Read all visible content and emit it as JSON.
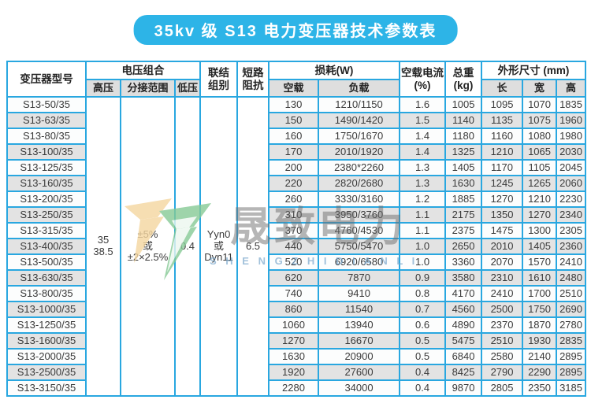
{
  "title": "35kv 级 S13 电力变压器技术参数表",
  "colors": {
    "title_bg": "#2db4e7",
    "grid": "#29a7e0",
    "sub_header_bg": "#dedede",
    "row_alt_bg": "#e3e3e3",
    "logo_green": "#86ca96",
    "logo_orange": "#f4d6a0"
  },
  "table": {
    "headers": {
      "model": "变压器型号",
      "voltage_group": "电压组合",
      "hv": "高压",
      "tap": "分接范围",
      "lv": "低压",
      "connection": "联结\n组别",
      "impedance": "短路\n阻抗",
      "loss_group": "损耗(W)",
      "no_load": "空载",
      "load": "负载",
      "current": "空载电流\n(%)",
      "weight": "总重\n(kg)",
      "dims_group": "外形尺寸 (mm)",
      "len": "长",
      "wid": "宽",
      "hei": "高"
    },
    "merged": {
      "hv": "35\n38.5",
      "tap": "±5%\n或\n±2×2.5%",
      "lv": "0.4",
      "connection": "Yyn0\n或\nDyn11",
      "impedance": "6.5"
    },
    "rows": [
      {
        "model": "S13-50/35",
        "no_load": "130",
        "load": "1210/1150",
        "current": "1.6",
        "weight": "1005",
        "len": "1095",
        "wid": "1070",
        "hei": "1835"
      },
      {
        "model": "S13-63/35",
        "no_load": "150",
        "load": "1490/1420",
        "current": "1.5",
        "weight": "1140",
        "len": "1135",
        "wid": "1075",
        "hei": "1960"
      },
      {
        "model": "S13-80/35",
        "no_load": "160",
        "load": "1750/1670",
        "current": "1.4",
        "weight": "1180",
        "len": "1160",
        "wid": "1080",
        "hei": "1980"
      },
      {
        "model": "S13-100/35",
        "no_load": "170",
        "load": "2010/1920",
        "current": "1.4",
        "weight": "1325",
        "len": "1210",
        "wid": "1065",
        "hei": "2030"
      },
      {
        "model": "S13-125/35",
        "no_load": "200",
        "load": "2380*2260",
        "current": "1.3",
        "weight": "1405",
        "len": "1170",
        "wid": "1105",
        "hei": "2045"
      },
      {
        "model": "S13-160/35",
        "no_load": "220",
        "load": "2820/2680",
        "current": "1.3",
        "weight": "1630",
        "len": "1245",
        "wid": "1265",
        "hei": "2060"
      },
      {
        "model": "S13-200/35",
        "no_load": "260",
        "load": "3330/3160",
        "current": "1.2",
        "weight": "1885",
        "len": "1270",
        "wid": "1210",
        "hei": "2230"
      },
      {
        "model": "S13-250/35",
        "no_load": "310",
        "load": "3950/3760",
        "current": "1.1",
        "weight": "2175",
        "len": "1350",
        "wid": "1270",
        "hei": "2340"
      },
      {
        "model": "S13-315/35",
        "no_load": "370",
        "load": "4760/4530",
        "current": "1.1",
        "weight": "2375",
        "len": "1475",
        "wid": "1300",
        "hei": "2305"
      },
      {
        "model": "S13-400/35",
        "no_load": "440",
        "load": "5750/5470",
        "current": "1.0",
        "weight": "2650",
        "len": "2010",
        "wid": "1405",
        "hei": "2360"
      },
      {
        "model": "S13-500/35",
        "no_load": "520",
        "load": "6920/6580",
        "current": "1.0",
        "weight": "3360",
        "len": "2070",
        "wid": "1570",
        "hei": "2410"
      },
      {
        "model": "S13-630/35",
        "no_load": "620",
        "load": "7870",
        "current": "0.9",
        "weight": "3580",
        "len": "2310",
        "wid": "1610",
        "hei": "2480"
      },
      {
        "model": "S13-800/35",
        "no_load": "740",
        "load": "9410",
        "current": "0.8",
        "weight": "4170",
        "len": "2410",
        "wid": "1700",
        "hei": "2510"
      },
      {
        "model": "S13-1000/35",
        "no_load": "860",
        "load": "11540",
        "current": "0.7",
        "weight": "4560",
        "len": "2500",
        "wid": "1750",
        "hei": "2690"
      },
      {
        "model": "S13-1250/35",
        "no_load": "1060",
        "load": "13940",
        "current": "0.6",
        "weight": "4890",
        "len": "2370",
        "wid": "1870",
        "hei": "2780"
      },
      {
        "model": "S13-1600/35",
        "no_load": "1270",
        "load": "16670",
        "current": "0.5",
        "weight": "5475",
        "len": "2510",
        "wid": "1930",
        "hei": "2835"
      },
      {
        "model": "S13-2000/35",
        "no_load": "1630",
        "load": "20900",
        "current": "0.5",
        "weight": "6840",
        "len": "2580",
        "wid": "2140",
        "hei": "2895"
      },
      {
        "model": "S13-2500/35",
        "no_load": "1920",
        "load": "27600",
        "current": "0.4",
        "weight": "8425",
        "len": "2790",
        "wid": "2290",
        "hei": "2895"
      },
      {
        "model": "S13-3150/35",
        "no_load": "2280",
        "load": "34000",
        "current": "0.4",
        "weight": "9870",
        "len": "2805",
        "wid": "2350",
        "hei": "3185"
      }
    ]
  },
  "watermark": {
    "cn": "晟致电力",
    "en": "S H E N G Z H I D I A N L I"
  }
}
